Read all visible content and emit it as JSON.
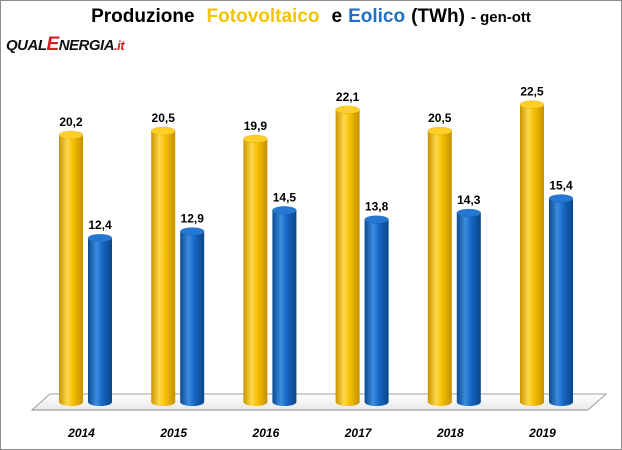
{
  "title": {
    "part1": "Produzione",
    "part2": "Fotovoltaico",
    "part3": "e",
    "part4": "Eolico",
    "part5": "(TWh)",
    "part6": "- gen-ott"
  },
  "logo": {
    "p1": "QUAL",
    "p2": "E",
    "p3": "NERGIA",
    "p4": ".it"
  },
  "colors": {
    "fotovoltaico": "#f7bd00",
    "eolico": "#1565c0"
  },
  "chart_data": {
    "type": "bar",
    "categories": [
      "2014",
      "2015",
      "2016",
      "2017",
      "2018",
      "2019"
    ],
    "series": [
      {
        "name": "Fotovoltaico",
        "values": [
          20.2,
          20.5,
          19.9,
          22.1,
          20.5,
          22.5
        ],
        "labels": [
          "20,2",
          "20,5",
          "19,9",
          "22,1",
          "20,5",
          "22,5"
        ]
      },
      {
        "name": "Eolico",
        "values": [
          12.4,
          12.9,
          14.5,
          13.8,
          14.3,
          15.4
        ],
        "labels": [
          "12,4",
          "12,9",
          "14,5",
          "13,8",
          "14,3",
          "15,4"
        ]
      }
    ],
    "ylim": [
      0,
      24
    ],
    "grid": false,
    "legend": "none"
  }
}
